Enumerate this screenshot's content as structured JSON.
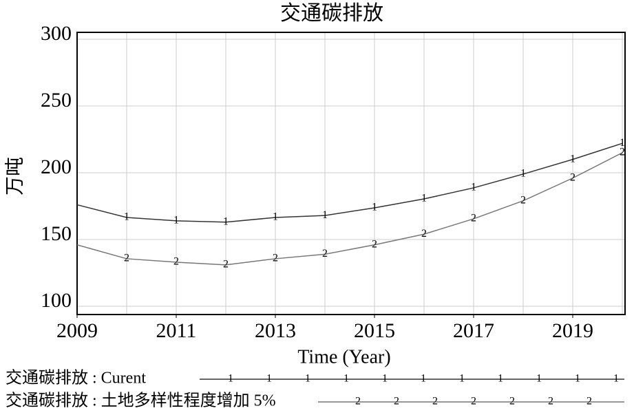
{
  "chart_data": {
    "type": "line",
    "title": "交通碳排放",
    "y_label": "万吨",
    "x_label": "Time (Year)",
    "x": [
      2009,
      2010,
      2011,
      2012,
      2013,
      2014,
      2015,
      2016,
      2017,
      2018,
      2019,
      2020
    ],
    "xlim": [
      2009,
      2020
    ],
    "xticks": [
      2009,
      2011,
      2013,
      2015,
      2017,
      2019
    ],
    "ylim": [
      100,
      300
    ],
    "yticks": [
      100,
      150,
      200,
      250,
      300
    ],
    "grid": true,
    "series": [
      {
        "name": "交通碳排放 : Curent",
        "color": "#333333",
        "marker": "1",
        "values": [
          176,
          166.5,
          164,
          163,
          166.5,
          168,
          173.7,
          180.4,
          188.7,
          199,
          210,
          222
        ]
      },
      {
        "name": "交通碳排放 : 土地多样性程度增加 5%",
        "color": "#777777",
        "marker": "2",
        "values": [
          146,
          135.6,
          133,
          131,
          135.6,
          139,
          146,
          154,
          165.5,
          179,
          196,
          215
        ]
      }
    ]
  }
}
